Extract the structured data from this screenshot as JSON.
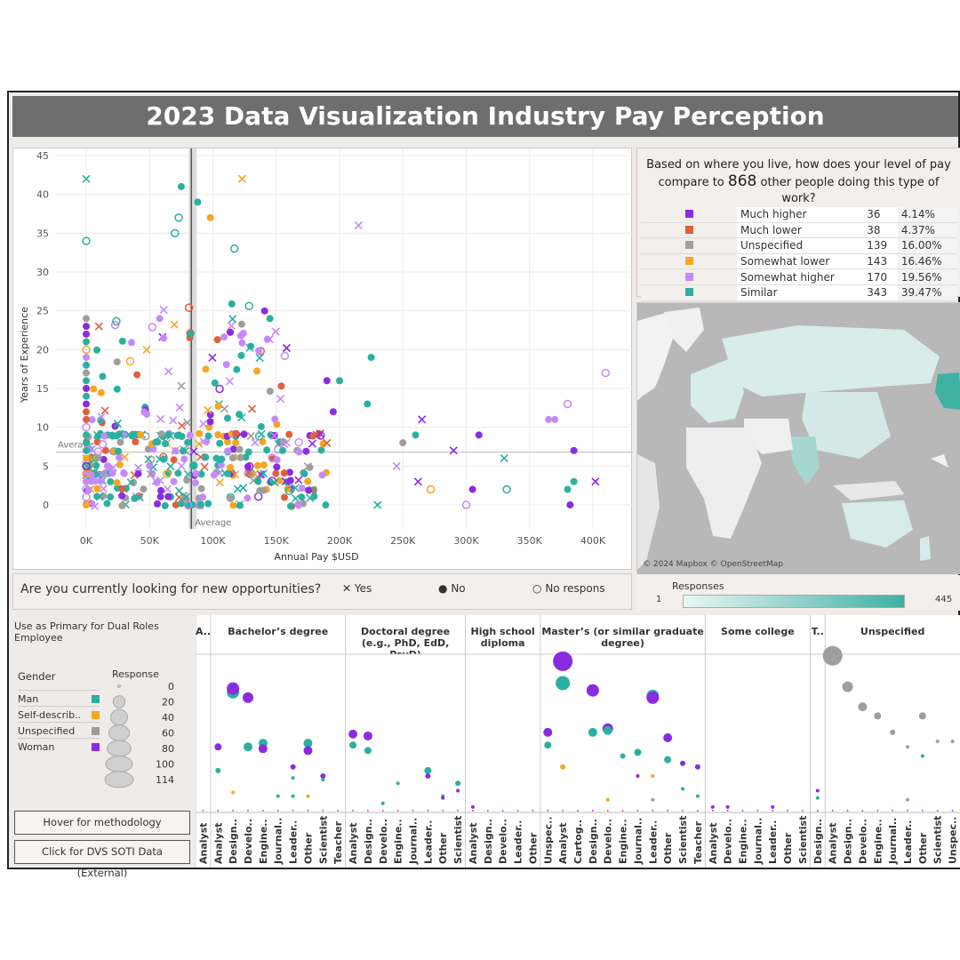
{
  "title": "2023 Data Visualization Industry Pay Perception",
  "scatter": {
    "ylabel": "Years of Experience",
    "xlabel": "Annual Pay $USD",
    "y_ticks": [
      "45",
      "40",
      "35",
      "30",
      "25",
      "20",
      "15",
      "10",
      "5",
      "0"
    ],
    "x_ticks": [
      "0K",
      "50K",
      "100K",
      "150K",
      "200K",
      "250K",
      "300K",
      "350K",
      "400K"
    ],
    "avg_h_label": "Average",
    "avg_v_label": "Average",
    "colors": {
      "much_higher": "#8a2be2",
      "much_lower": "#e15f3c",
      "unspecified": "#9e9e9e",
      "somewhat_lower": "#f5a623",
      "somewhat_higher": "#c58af9",
      "similar": "#2ab0a0"
    }
  },
  "question": {
    "text": "Are you currently looking for new opportunities?",
    "legend": [
      {
        "symbol": "✕",
        "label": "Yes"
      },
      {
        "symbol": "●",
        "label": "No"
      },
      {
        "symbol": "○",
        "label": "No respons"
      }
    ]
  },
  "summary": {
    "question_part1": "Based on where you live, how does your level of pay compare to",
    "count": "868",
    "question_part2": "other people doing this type of work?",
    "rows": [
      {
        "label": "Much higher",
        "count": "36",
        "pct": "4.14%",
        "color": "#8a2be2"
      },
      {
        "label": "Much lower",
        "count": "38",
        "pct": "4.37%",
        "color": "#e15f3c"
      },
      {
        "label": "Unspecified",
        "count": "139",
        "pct": "16.00%",
        "color": "#9e9e9e"
      },
      {
        "label": "Somewhat lower",
        "count": "143",
        "pct": "16.46%",
        "color": "#f5a623"
      },
      {
        "label": "Somewhat higher",
        "count": "170",
        "pct": "19.56%",
        "color": "#c58af9"
      },
      {
        "label": "Similar",
        "count": "343",
        "pct": "39.47%",
        "color": "#2ab0a0"
      }
    ]
  },
  "map": {
    "credit": "© 2024 Mapbox © OpenStreetMap"
  },
  "responses": {
    "label": "Responses",
    "min": "1",
    "max": "445"
  },
  "left_panel": {
    "header": "Use as Primary for Dual Roles Employee",
    "gender_title": "Gender",
    "genders": [
      {
        "label": "Man",
        "color": "#2ab0a0"
      },
      {
        "label": "Self-describ..",
        "color": "#f5a623"
      },
      {
        "label": "Unspecified",
        "color": "#9e9e9e"
      },
      {
        "label": "Woman",
        "color": "#8a2be2"
      }
    ],
    "response_title": "Response",
    "response_sizes": [
      "0",
      "20",
      "40",
      "60",
      "80",
      "100",
      "114"
    ],
    "btn_method": "Hover for methodology",
    "btn_soti": "Click for DVS SOTI Data (External)"
  },
  "facets": [
    {
      "title": "A..",
      "roles": [
        "Analyst"
      ]
    },
    {
      "title": "Bachelor’s degree",
      "roles": [
        "Analyst",
        "Design..",
        "Develo..",
        "Engine..",
        "Journal..",
        "Leader..",
        "Other",
        "Scientist",
        "Teacher"
      ]
    },
    {
      "title": "Doctoral degree (e.g., PhD, EdD, PsyD)",
      "roles": [
        "Analyst",
        "Design..",
        "Develo..",
        "Engine..",
        "Journal..",
        "Leader..",
        "Other",
        "Scientist"
      ]
    },
    {
      "title": "High school diploma",
      "roles": [
        "Analyst",
        "Design..",
        "Develo..",
        "Leader..",
        "Other"
      ]
    },
    {
      "title": "Master’s (or similar graduate degree)",
      "roles": [
        "Unspec..",
        "Analyst",
        "Cartog..",
        "Design..",
        "Develo..",
        "Engine..",
        "Journal..",
        "Leader..",
        "Other",
        "Scientist",
        "Teacher"
      ]
    },
    {
      "title": "Some college",
      "roles": [
        "Analyst",
        "Develo..",
        "Engine..",
        "Journal..",
        "Leader..",
        "Other",
        "Scientist"
      ]
    },
    {
      "title": "T..",
      "roles": [
        "Design.."
      ]
    },
    {
      "title": "Unspecified",
      "roles": [
        "Analyst",
        "Design..",
        "Develo..",
        "Engine..",
        "Journal..",
        "Leader..",
        "Other",
        "Scientist",
        "Unspec.."
      ]
    }
  ]
}
